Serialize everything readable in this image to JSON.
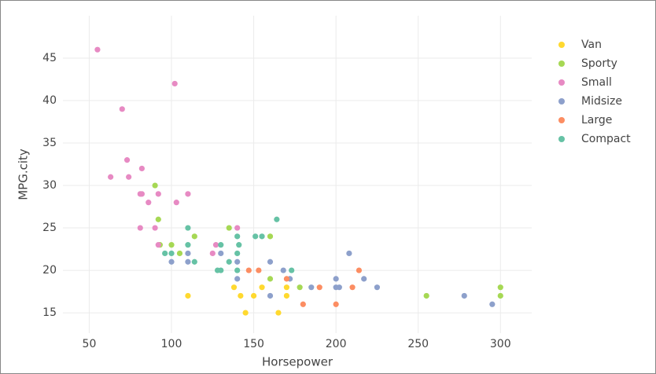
{
  "chart_data": {
    "type": "scatter",
    "x_label": "Horsepower",
    "y_label": "MPG.city",
    "xlim": [
      34,
      319
    ],
    "ylim": [
      12.6,
      50
    ],
    "xticks": [
      50,
      100,
      150,
      200,
      250,
      300
    ],
    "yticks": [
      15,
      20,
      25,
      30,
      35,
      40,
      45
    ],
    "grid": true,
    "legend": "right",
    "series": [
      {
        "name": "Van",
        "color": "#ffd92f",
        "x": [
          110,
          138,
          142,
          145,
          150,
          155,
          165,
          170,
          170
        ],
        "values": [
          17,
          18,
          17,
          15,
          17,
          18,
          15,
          18,
          17
        ]
      },
      {
        "name": "Sporty",
        "color": "#a6d854",
        "x": [
          90,
          92,
          93,
          100,
          105,
          114,
          135,
          160,
          160,
          178,
          255,
          300,
          300
        ],
        "values": [
          30,
          26,
          23,
          23,
          22,
          24,
          25,
          24,
          19,
          18,
          17,
          18,
          17
        ]
      },
      {
        "name": "Small",
        "color": "#e78ac3",
        "x": [
          55,
          102,
          70,
          73,
          63,
          74,
          82,
          81,
          82,
          86,
          92,
          110,
          103,
          81,
          90,
          92,
          125,
          127,
          140
        ],
        "values": [
          46,
          42,
          39,
          33,
          31,
          31,
          32,
          29,
          29,
          28,
          29,
          29,
          28,
          25,
          25,
          23,
          22,
          23,
          25
        ]
      },
      {
        "name": "Midsize",
        "color": "#8da0cb",
        "x": [
          100,
          110,
          110,
          130,
          140,
          140,
          160,
          160,
          168,
          172,
          185,
          200,
          200,
          202,
          208,
          217,
          225,
          278,
          295
        ],
        "values": [
          21,
          22,
          21,
          22,
          21,
          19,
          21,
          17,
          20,
          19,
          18,
          19,
          18,
          18,
          22,
          19,
          18,
          17,
          16
        ]
      },
      {
        "name": "Large",
        "color": "#fc8d62",
        "x": [
          147,
          153,
          170,
          180,
          190,
          200,
          210,
          214
        ],
        "values": [
          20,
          20,
          19,
          16,
          18,
          16,
          18,
          20
        ]
      },
      {
        "name": "Compact",
        "color": "#66c2a5",
        "x": [
          96,
          100,
          110,
          110,
          114,
          128,
          130,
          130,
          135,
          140,
          141,
          140,
          140,
          151,
          155,
          164,
          173
        ],
        "values": [
          22,
          22,
          25,
          23,
          21,
          20,
          23,
          20,
          21,
          24,
          23,
          22,
          20,
          24,
          24,
          26,
          20
        ]
      }
    ]
  }
}
